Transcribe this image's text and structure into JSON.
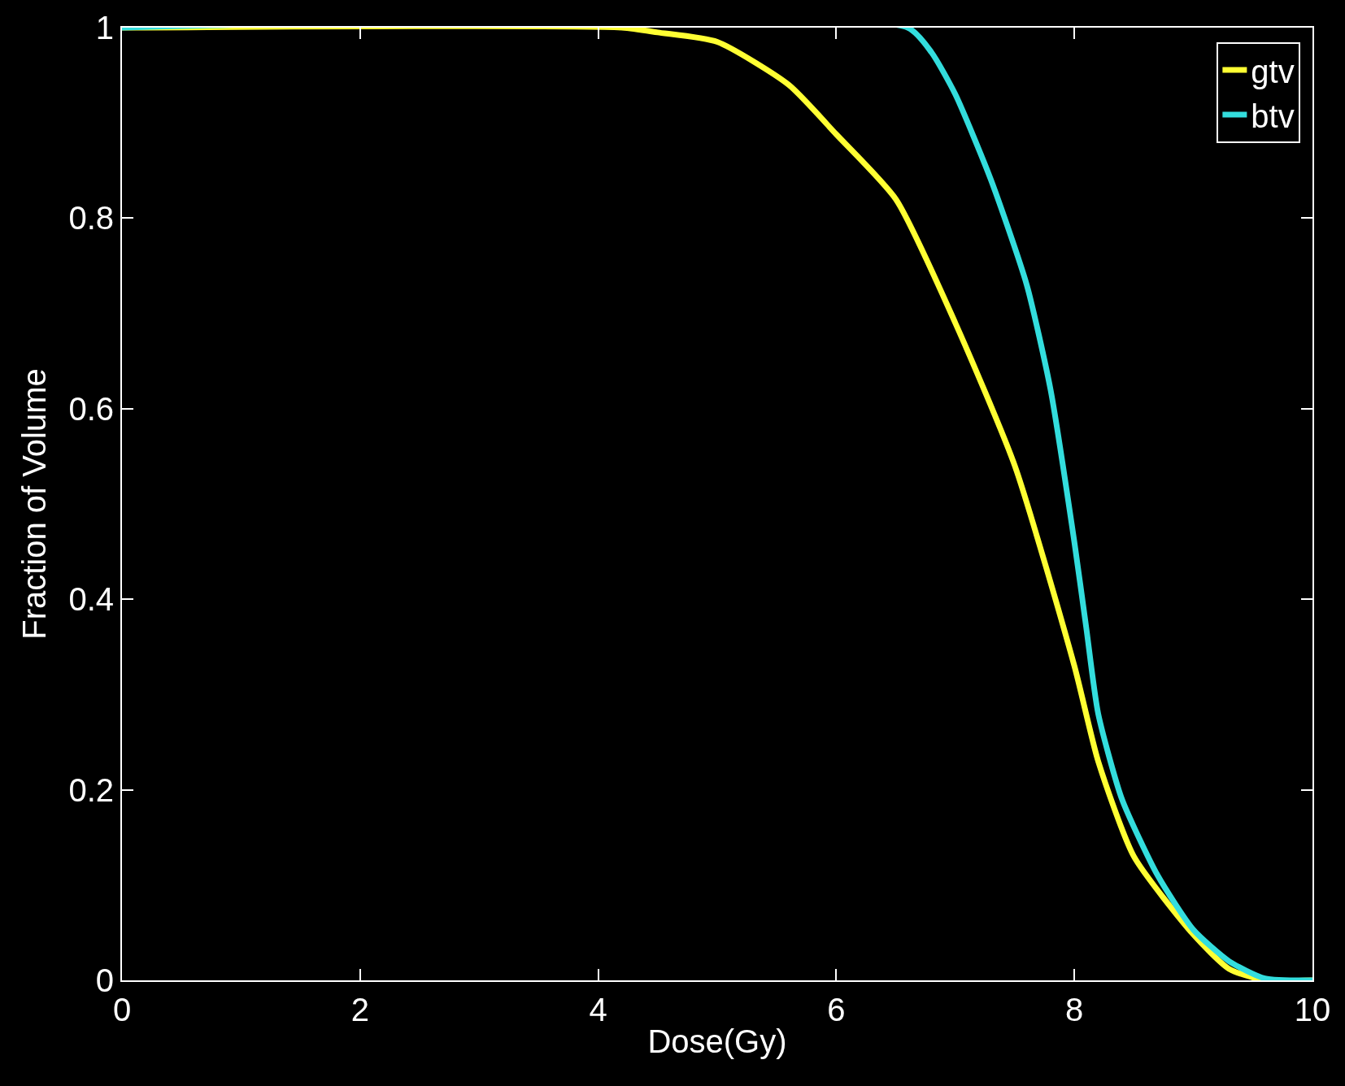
{
  "chart_data": {
    "type": "line",
    "xlabel": "Dose(Gy)",
    "ylabel": "Fraction of Volume",
    "xlim": [
      0,
      10
    ],
    "ylim": [
      0,
      1
    ],
    "xticks": [
      0,
      2,
      4,
      6,
      8,
      10
    ],
    "yticks": [
      0,
      0.2,
      0.4,
      0.6,
      0.8,
      1
    ],
    "legend": "top right",
    "grid": false,
    "marker": "none",
    "line_style": "solid",
    "series": [
      {
        "name": "gtv",
        "color": "#ffff33",
        "x": [
          0,
          4.2,
          4.5,
          5.0,
          5.6,
          6.0,
          6.5,
          7.0,
          7.5,
          8.0,
          8.2,
          8.5,
          9.0,
          9.3,
          9.6,
          10
        ],
        "values": [
          1,
          1,
          0.995,
          0.985,
          0.94,
          0.888,
          0.82,
          0.69,
          0.54,
          0.33,
          0.23,
          0.13,
          0.048,
          0.012,
          0,
          0
        ]
      },
      {
        "name": "btv",
        "color": "#33dddd",
        "x": [
          0,
          6.6,
          6.8,
          7.0,
          7.3,
          7.6,
          7.8,
          8.0,
          8.1,
          8.2,
          8.4,
          8.7,
          9.0,
          9.3,
          9.6,
          10
        ],
        "values": [
          1,
          1,
          0.974,
          0.93,
          0.84,
          0.73,
          0.62,
          0.46,
          0.37,
          0.28,
          0.19,
          0.11,
          0.053,
          0.02,
          0.002,
          0
        ]
      }
    ]
  }
}
